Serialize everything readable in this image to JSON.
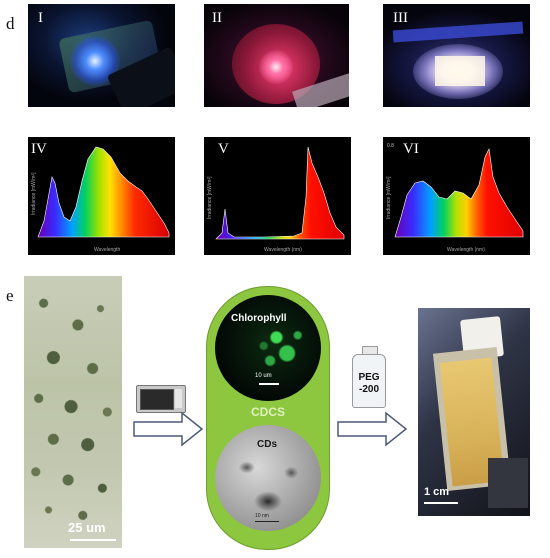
{
  "panel_d": {
    "letter": "d",
    "photos": [
      {
        "label": "I",
        "glow_color": "#3b6cff"
      },
      {
        "label": "II",
        "glow_color": "#ff3c78"
      },
      {
        "label": "III",
        "glow_color": "#ffffff"
      }
    ],
    "spectra": [
      {
        "label": "IV",
        "ylabel": "Irradiance [mW/m²]",
        "xlabel": "Wavelength"
      },
      {
        "label": "V",
        "ylabel": "Irradiance [mW/m²]",
        "xlabel": "Wavelength (nm)"
      },
      {
        "label": "VI",
        "ylabel": "Irradiance [mW/m²]",
        "xlabel": "Wavelength (nm)",
        "ymax_label": "0.8"
      }
    ]
  },
  "panel_e": {
    "letter": "e",
    "microscopy": {
      "scale_bar": "25 um"
    },
    "cdcs": {
      "top_label": "Chlorophyll",
      "top_scale": "10 um",
      "middle_label": "CDCS",
      "bottom_label": "CDs",
      "bottom_scale": "10 nm",
      "capsule_color": "#8dc63f"
    },
    "bottle": {
      "label_line1": "PEG",
      "label_line2": "-200"
    },
    "cuvette": {
      "scale_bar": "1 cm"
    }
  }
}
